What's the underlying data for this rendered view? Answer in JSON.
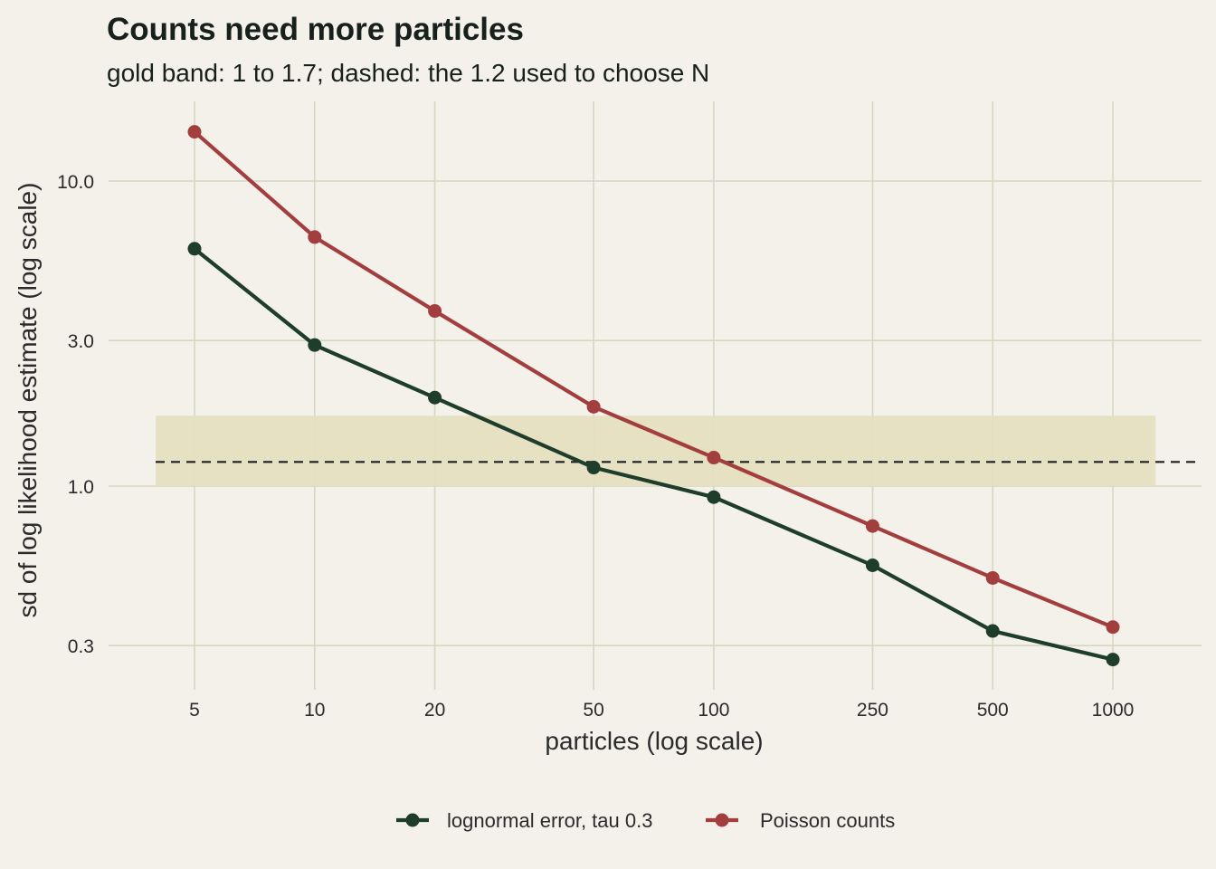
{
  "chart_data": {
    "type": "line",
    "title": "Counts need more particles",
    "subtitle": "gold band: 1 to 1.7; dashed: the 1.2 used to choose N",
    "xlabel": "particles (log scale)",
    "ylabel": "sd of log likelihood estimate (log scale)",
    "x_scale": "log",
    "y_scale": "log",
    "x": [
      5,
      10,
      20,
      50,
      100,
      250,
      500,
      1000
    ],
    "x_tick_labels": [
      "5",
      "10",
      "20",
      "50",
      "100",
      "250",
      "500",
      "1000"
    ],
    "y_ticks": [
      0.3,
      1.0,
      3.0,
      10.0
    ],
    "y_tick_labels": [
      "0.3",
      "1.0",
      "3.0",
      "10.0"
    ],
    "xlim": [
      4.2,
      1350
    ],
    "ylim": [
      0.22,
      18
    ],
    "band": {
      "ymin": 1.0,
      "ymax": 1.7,
      "xmin": 4.0,
      "xmax": 1280,
      "color": "#e5dfc1"
    },
    "reference_line": {
      "y": 1.2,
      "style": "dashed",
      "color": "#1f1f1f"
    },
    "series": [
      {
        "name": "lognormal error, tau 0.3",
        "color": "#1f3d2b",
        "values": [
          6.0,
          2.9,
          1.95,
          1.15,
          0.92,
          0.55,
          0.335,
          0.27
        ]
      },
      {
        "name": "Poisson counts",
        "color": "#a33e3e",
        "values": [
          14.5,
          6.55,
          3.75,
          1.82,
          1.24,
          0.74,
          0.5,
          0.345
        ]
      }
    ],
    "grid": true,
    "legend_position": "bottom"
  }
}
